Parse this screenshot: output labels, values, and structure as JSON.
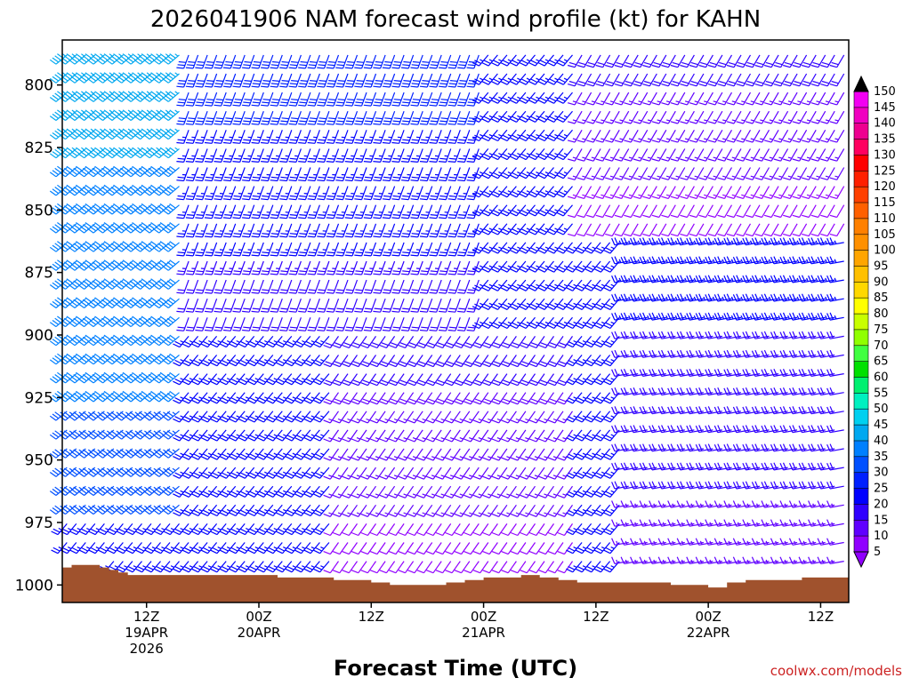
{
  "chart_data": {
    "type": "wind-barb-time-height",
    "title": "2026041906 NAM forecast wind profile (kt) for KAHN",
    "xlabel": "Forecast Time (UTC)",
    "ylabel": "",
    "credit": "coolwx.com/models",
    "x_axis": {
      "unit": "hours since 2026-04-19 06Z",
      "range": [
        -3,
        81
      ],
      "ticks": [
        {
          "hour": 6,
          "lines": [
            "12Z",
            "19APR",
            "2026"
          ]
        },
        {
          "hour": 18,
          "lines": [
            "00Z",
            "20APR"
          ]
        },
        {
          "hour": 30,
          "lines": [
            "12Z"
          ]
        },
        {
          "hour": 42,
          "lines": [
            "00Z",
            "21APR"
          ]
        },
        {
          "hour": 54,
          "lines": [
            "12Z"
          ]
        },
        {
          "hour": 66,
          "lines": [
            "00Z",
            "22APR"
          ]
        },
        {
          "hour": 78,
          "lines": [
            "12Z"
          ]
        }
      ]
    },
    "y_axis": {
      "unit": "hPa",
      "range": [
        1007,
        782
      ],
      "ticks": [
        800,
        825,
        850,
        875,
        900,
        925,
        950,
        975,
        1000
      ]
    },
    "colorbar": {
      "unit": "kt",
      "labels": [
        150,
        145,
        140,
        135,
        130,
        125,
        120,
        115,
        110,
        105,
        100,
        95,
        90,
        85,
        80,
        75,
        70,
        65,
        60,
        55,
        50,
        45,
        40,
        35,
        30,
        25,
        20,
        15,
        10,
        5
      ],
      "colors": [
        "#f200f2",
        "#f000c0",
        "#ee0090",
        "#ff0060",
        "#ff0000",
        "#ff2000",
        "#ff4000",
        "#ff6000",
        "#ff8000",
        "#ff9000",
        "#ffa500",
        "#ffc000",
        "#ffd800",
        "#ffff00",
        "#c8ff00",
        "#90ff00",
        "#40ff40",
        "#00e000",
        "#00f070",
        "#00f0c0",
        "#00d0f0",
        "#00a8f0",
        "#0080ff",
        "#0050ff",
        "#0020ff",
        "#0000ff",
        "#3000ff",
        "#6000ff",
        "#9000ff"
      ]
    },
    "surface_pressure": {
      "hours": [
        -3,
        -2,
        0,
        1,
        2,
        3,
        4,
        6,
        8,
        10,
        12,
        14,
        16,
        18,
        20,
        22,
        24,
        26,
        28,
        30,
        32,
        34,
        36,
        38,
        40,
        42,
        44,
        46,
        48,
        50,
        52,
        54,
        56,
        58,
        60,
        62,
        64,
        66,
        68,
        70,
        72,
        74,
        76,
        78,
        80,
        81
      ],
      "pressure_hpa": [
        993,
        992,
        992,
        993,
        994,
        995,
        996,
        996,
        996,
        996,
        996,
        996,
        996,
        996,
        997,
        997,
        997,
        998,
        998,
        999,
        1000,
        1000,
        1000,
        999,
        998,
        997,
        997,
        996,
        997,
        998,
        999,
        999,
        999,
        999,
        999,
        1000,
        1000,
        1001,
        999,
        998,
        998,
        998,
        997,
        997,
        997,
        995
      ]
    },
    "wind_regimes": [
      {
        "hours": [
          -3,
          10
        ],
        "pressure_hpa": [
          782,
          975
        ],
        "direction_deg": 230,
        "speed_kt": [
          35,
          45
        ]
      },
      {
        "hours": [
          10,
          42
        ],
        "pressure_hpa": [
          782,
          900
        ],
        "direction_deg": 200,
        "speed_kt": [
          20,
          30
        ]
      },
      {
        "hours": [
          26,
          52
        ],
        "pressure_hpa": [
          900,
          992
        ],
        "direction_deg": 215,
        "speed_kt": [
          10,
          20
        ]
      },
      {
        "hours": [
          52,
          81
        ],
        "pressure_hpa": [
          782,
          860
        ],
        "direction_deg": 210,
        "speed_kt": [
          10,
          20
        ]
      },
      {
        "hours": [
          57,
          81
        ],
        "pressure_hpa": [
          860,
          1000
        ],
        "direction_deg": 260,
        "speed_kt": [
          15,
          25
        ]
      }
    ]
  }
}
